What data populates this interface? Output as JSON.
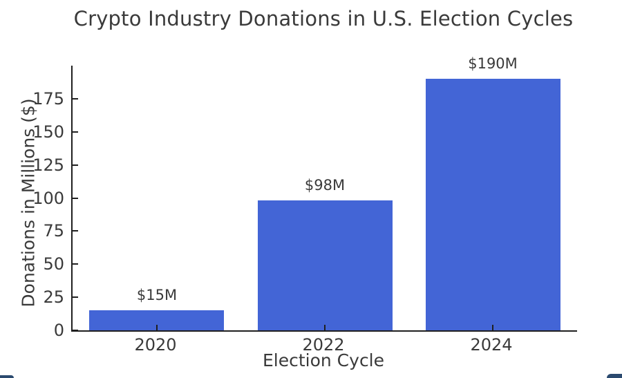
{
  "chart_data": {
    "type": "bar",
    "title": "Crypto Industry Donations in U.S. Election Cycles",
    "categories": [
      "2020",
      "2022",
      "2024"
    ],
    "values": [
      15,
      98,
      190
    ],
    "bar_labels": [
      "$15M",
      "$98M",
      "$190M"
    ],
    "xlabel": "Election Cycle",
    "ylabel": "Donations in Millions ($)",
    "yticks": [
      0,
      25,
      50,
      75,
      100,
      125,
      150,
      175
    ],
    "ylim": [
      0,
      200
    ],
    "grid": false,
    "legend_position": "none",
    "bar_color": "#4365d6",
    "axis_color": "#1f1f1f",
    "text_color": "#3a3a3a",
    "background_color": "#ffffff",
    "accent_color": "#2b4a6f"
  }
}
